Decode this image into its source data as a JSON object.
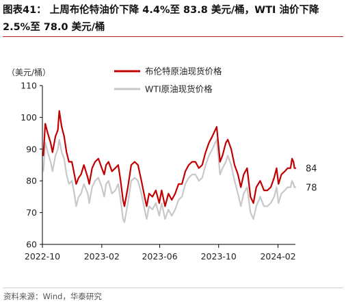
{
  "header": {
    "figure_title": "图表41： 上周布伦特油价下降 4.4%至 83.8 美元/桶，WTI 油价下降 2.5%至 78.0 美元/桶"
  },
  "footer": {
    "source": "资料来源：Wind，华泰研究"
  },
  "colors": {
    "brent": "#c00000",
    "wti": "#c8c8c8",
    "accent_rule": "#b0271d"
  },
  "chart_data": {
    "type": "line",
    "title": "",
    "ylabel": "（美元/桶）",
    "ylim": [
      60,
      110
    ],
    "yticks": [
      "60",
      "70",
      "80",
      "90",
      "100",
      "110"
    ],
    "xlim": [
      "2022-10-01",
      "2024-03-08"
    ],
    "xticks": [
      {
        "date": "2022-10-01",
        "label": "2022-10"
      },
      {
        "date": "2023-02-01",
        "label": "2023-02"
      },
      {
        "date": "2023-06-01",
        "label": "2023-06"
      },
      {
        "date": "2023-10-01",
        "label": "2023-10"
      },
      {
        "date": "2024-02-01",
        "label": "2024-02"
      }
    ],
    "legend_position": "top-center",
    "end_labels": [
      {
        "series": "布伦特原油现货价格",
        "text": "84",
        "value": 84
      },
      {
        "series": "WTI原油现货价格",
        "text": "78",
        "value": 78
      }
    ],
    "series": [
      {
        "name": "布伦特原油现货价格",
        "color": "#c00000",
        "points": [
          [
            "2022-10-03",
            88
          ],
          [
            "2022-10-07",
            98
          ],
          [
            "2022-10-12",
            95
          ],
          [
            "2022-10-18",
            92
          ],
          [
            "2022-10-22",
            89
          ],
          [
            "2022-10-28",
            94
          ],
          [
            "2022-11-02",
            96
          ],
          [
            "2022-11-05",
            102
          ],
          [
            "2022-11-10",
            97
          ],
          [
            "2022-11-15",
            94
          ],
          [
            "2022-11-20",
            89
          ],
          [
            "2022-11-25",
            86
          ],
          [
            "2022-12-01",
            86
          ],
          [
            "2022-12-05",
            83
          ],
          [
            "2022-12-10",
            79
          ],
          [
            "2022-12-15",
            81
          ],
          [
            "2022-12-20",
            82
          ],
          [
            "2022-12-26",
            85
          ],
          [
            "2023-01-03",
            81
          ],
          [
            "2023-01-06",
            79
          ],
          [
            "2023-01-12",
            84
          ],
          [
            "2023-01-18",
            86
          ],
          [
            "2023-01-25",
            87
          ],
          [
            "2023-02-01",
            84
          ],
          [
            "2023-02-06",
            82
          ],
          [
            "2023-02-10",
            85
          ],
          [
            "2023-02-15",
            86
          ],
          [
            "2023-02-22",
            83
          ],
          [
            "2023-03-01",
            84
          ],
          [
            "2023-03-07",
            85
          ],
          [
            "2023-03-12",
            80
          ],
          [
            "2023-03-17",
            74
          ],
          [
            "2023-03-20",
            72
          ],
          [
            "2023-03-27",
            78
          ],
          [
            "2023-04-03",
            85
          ],
          [
            "2023-04-10",
            86
          ],
          [
            "2023-04-17",
            85
          ],
          [
            "2023-04-24",
            80
          ],
          [
            "2023-05-02",
            74
          ],
          [
            "2023-05-05",
            72
          ],
          [
            "2023-05-10",
            76
          ],
          [
            "2023-05-17",
            75
          ],
          [
            "2023-05-24",
            77
          ],
          [
            "2023-05-31",
            73
          ],
          [
            "2023-06-05",
            77
          ],
          [
            "2023-06-12",
            72
          ],
          [
            "2023-06-19",
            76
          ],
          [
            "2023-06-26",
            74
          ],
          [
            "2023-07-03",
            76
          ],
          [
            "2023-07-10",
            79
          ],
          [
            "2023-07-17",
            79
          ],
          [
            "2023-07-24",
            83
          ],
          [
            "2023-07-31",
            85
          ],
          [
            "2023-08-07",
            86
          ],
          [
            "2023-08-14",
            86
          ],
          [
            "2023-08-21",
            84
          ],
          [
            "2023-08-28",
            85
          ],
          [
            "2023-09-04",
            89
          ],
          [
            "2023-09-11",
            92
          ],
          [
            "2023-09-18",
            94
          ],
          [
            "2023-09-27",
            97
          ],
          [
            "2023-10-04",
            86
          ],
          [
            "2023-10-09",
            88
          ],
          [
            "2023-10-16",
            92
          ],
          [
            "2023-10-20",
            93
          ],
          [
            "2023-10-27",
            90
          ],
          [
            "2023-11-03",
            85
          ],
          [
            "2023-11-10",
            82
          ],
          [
            "2023-11-16",
            78
          ],
          [
            "2023-11-22",
            82
          ],
          [
            "2023-11-29",
            84
          ],
          [
            "2023-12-06",
            75
          ],
          [
            "2023-12-12",
            73
          ],
          [
            "2023-12-18",
            78
          ],
          [
            "2023-12-26",
            80
          ],
          [
            "2024-01-03",
            77
          ],
          [
            "2024-01-10",
            77
          ],
          [
            "2024-01-17",
            78
          ],
          [
            "2024-01-24",
            81
          ],
          [
            "2024-01-29",
            84
          ],
          [
            "2024-02-02",
            79
          ],
          [
            "2024-02-08",
            82
          ],
          [
            "2024-02-15",
            83
          ],
          [
            "2024-02-21",
            84
          ],
          [
            "2024-02-27",
            84
          ],
          [
            "2024-03-01",
            87
          ],
          [
            "2024-03-04",
            86
          ],
          [
            "2024-03-06",
            84
          ],
          [
            "2024-03-08",
            84
          ]
        ]
      },
      {
        "name": "WTI原油现货价格",
        "color": "#c8c8c8",
        "points": [
          [
            "2022-10-03",
            83
          ],
          [
            "2022-10-07",
            92
          ],
          [
            "2022-10-12",
            89
          ],
          [
            "2022-10-18",
            86
          ],
          [
            "2022-10-22",
            83
          ],
          [
            "2022-10-28",
            88
          ],
          [
            "2022-11-02",
            90
          ],
          [
            "2022-11-05",
            93
          ],
          [
            "2022-11-10",
            89
          ],
          [
            "2022-11-15",
            87
          ],
          [
            "2022-11-20",
            82
          ],
          [
            "2022-11-25",
            79
          ],
          [
            "2022-12-01",
            80
          ],
          [
            "2022-12-05",
            77
          ],
          [
            "2022-12-10",
            72
          ],
          [
            "2022-12-15",
            75
          ],
          [
            "2022-12-20",
            76
          ],
          [
            "2022-12-26",
            79
          ],
          [
            "2023-01-03",
            76
          ],
          [
            "2023-01-06",
            73
          ],
          [
            "2023-01-12",
            78
          ],
          [
            "2023-01-18",
            80
          ],
          [
            "2023-01-25",
            81
          ],
          [
            "2023-02-01",
            78
          ],
          [
            "2023-02-06",
            75
          ],
          [
            "2023-02-10",
            79
          ],
          [
            "2023-02-15",
            80
          ],
          [
            "2023-02-22",
            76
          ],
          [
            "2023-03-01",
            77
          ],
          [
            "2023-03-07",
            79
          ],
          [
            "2023-03-12",
            74
          ],
          [
            "2023-03-17",
            68
          ],
          [
            "2023-03-20",
            67
          ],
          [
            "2023-03-27",
            73
          ],
          [
            "2023-04-03",
            80
          ],
          [
            "2023-04-10",
            81
          ],
          [
            "2023-04-17",
            80
          ],
          [
            "2023-04-24",
            76
          ],
          [
            "2023-05-02",
            70
          ],
          [
            "2023-05-05",
            68
          ],
          [
            "2023-05-10",
            72
          ],
          [
            "2023-05-17",
            71
          ],
          [
            "2023-05-24",
            73
          ],
          [
            "2023-05-31",
            69
          ],
          [
            "2023-06-05",
            73
          ],
          [
            "2023-06-12",
            68
          ],
          [
            "2023-06-19",
            71
          ],
          [
            "2023-06-26",
            69
          ],
          [
            "2023-07-03",
            71
          ],
          [
            "2023-07-10",
            74
          ],
          [
            "2023-07-17",
            75
          ],
          [
            "2023-07-24",
            79
          ],
          [
            "2023-07-31",
            81
          ],
          [
            "2023-08-07",
            82
          ],
          [
            "2023-08-14",
            82
          ],
          [
            "2023-08-21",
            80
          ],
          [
            "2023-08-28",
            81
          ],
          [
            "2023-09-04",
            85
          ],
          [
            "2023-09-11",
            88
          ],
          [
            "2023-09-18",
            90
          ],
          [
            "2023-09-27",
            93
          ],
          [
            "2023-10-04",
            82
          ],
          [
            "2023-10-09",
            84
          ],
          [
            "2023-10-16",
            86
          ],
          [
            "2023-10-20",
            88
          ],
          [
            "2023-10-27",
            85
          ],
          [
            "2023-11-03",
            80
          ],
          [
            "2023-11-10",
            76
          ],
          [
            "2023-11-16",
            72
          ],
          [
            "2023-11-22",
            76
          ],
          [
            "2023-11-29",
            78
          ],
          [
            "2023-12-06",
            70
          ],
          [
            "2023-12-12",
            68
          ],
          [
            "2023-12-18",
            72
          ],
          [
            "2023-12-26",
            75
          ],
          [
            "2024-01-03",
            72
          ],
          [
            "2024-01-10",
            72
          ],
          [
            "2024-01-17",
            73
          ],
          [
            "2024-01-24",
            75
          ],
          [
            "2024-01-29",
            78
          ],
          [
            "2024-02-02",
            73
          ],
          [
            "2024-02-08",
            76
          ],
          [
            "2024-02-15",
            77
          ],
          [
            "2024-02-21",
            78
          ],
          [
            "2024-02-27",
            78
          ],
          [
            "2024-03-01",
            80
          ],
          [
            "2024-03-04",
            79
          ],
          [
            "2024-03-06",
            78
          ],
          [
            "2024-03-08",
            78
          ]
        ]
      }
    ]
  }
}
